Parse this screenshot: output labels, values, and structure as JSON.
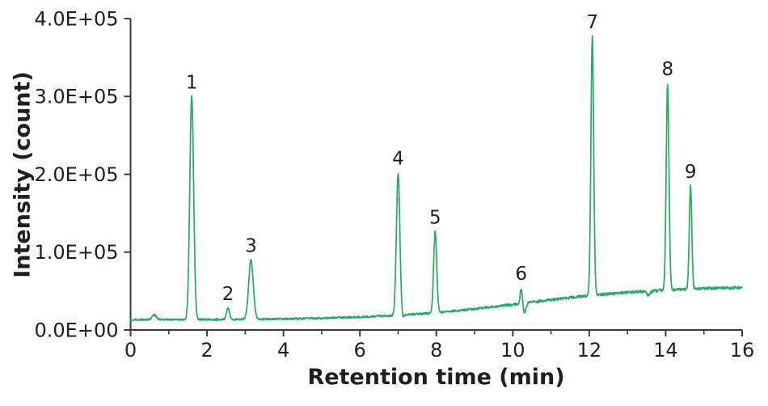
{
  "figure": {
    "background_color": "#ffffff",
    "text_color": "#1f1f1f",
    "axis_color": "#3b3b3b"
  },
  "chart_data": {
    "type": "line",
    "title": "",
    "xlabel": "Retention time (min)",
    "ylabel": "Intensity (count)",
    "xlim": [
      0,
      16
    ],
    "ylim": [
      0,
      400000
    ],
    "grid": false,
    "legend": "none",
    "x_ticks": {
      "major_values": [
        0,
        2,
        4,
        6,
        8,
        10,
        12,
        14,
        16
      ],
      "major_labels": [
        "0",
        "2",
        "4",
        "6",
        "8",
        "10",
        "12",
        "14",
        "16"
      ],
      "minor_values": [
        1,
        3,
        5,
        7,
        9,
        11,
        13,
        15
      ]
    },
    "y_ticks": {
      "values": [
        0,
        100000,
        200000,
        300000,
        400000
      ],
      "labels": [
        "0.0E+00",
        "1.0E+05",
        "2.0E+05",
        "3.0E+05",
        "4.0E+05"
      ]
    },
    "series": [
      {
        "name": "chromatogram-trace",
        "color": "#28a962",
        "baseline": {
          "start_value": 13000,
          "end_value": 56000,
          "rise_center_min": 10.3,
          "rise_width_min": 1.8,
          "noise_amplitude": 1400
        },
        "peaks": [
          {
            "label": "1",
            "rt_min": 1.6,
            "apex_intensity": 300000,
            "sigma_min": 0.05
          },
          {
            "label": "2",
            "rt_min": 2.55,
            "apex_intensity": 28000,
            "sigma_min": 0.038
          },
          {
            "label": "3",
            "rt_min": 3.15,
            "apex_intensity": 90000,
            "sigma_min": 0.06
          },
          {
            "label": "4",
            "rt_min": 7.0,
            "apex_intensity": 202000,
            "sigma_min": 0.045
          },
          {
            "label": "5",
            "rt_min": 7.97,
            "apex_intensity": 126000,
            "sigma_min": 0.04
          },
          {
            "label": "6",
            "rt_min": 10.22,
            "apex_intensity": 54000,
            "sigma_min": 0.027
          },
          {
            "label": "7",
            "rt_min": 12.08,
            "apex_intensity": 377000,
            "sigma_min": 0.036
          },
          {
            "label": "8",
            "rt_min": 14.05,
            "apex_intensity": 317000,
            "sigma_min": 0.036
          },
          {
            "label": "9",
            "rt_min": 14.65,
            "apex_intensity": 185000,
            "sigma_min": 0.033
          }
        ],
        "minor_features": {
          "unlabeled_bump": {
            "rt_min": 0.62,
            "height_above_baseline": 6000,
            "sigma_min": 0.06
          },
          "dips": [
            {
              "rt_min": 7.12,
              "depth": 5000,
              "sigma_min": 0.03
            },
            {
              "rt_min": 10.31,
              "depth": 12000,
              "sigma_min": 0.035
            },
            {
              "rt_min": 13.55,
              "depth": 5000,
              "sigma_min": 0.05
            }
          ]
        }
      }
    ]
  }
}
